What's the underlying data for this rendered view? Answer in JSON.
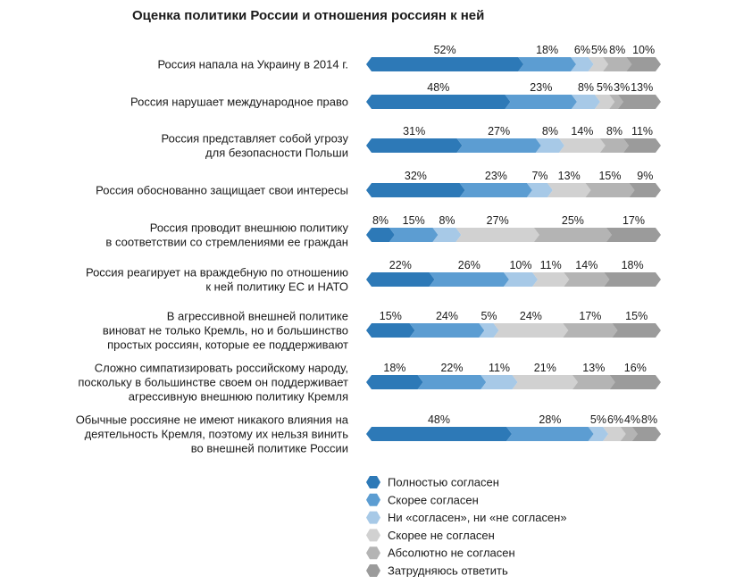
{
  "chart_data": {
    "type": "bar",
    "orientation": "horizontal",
    "stacked": true,
    "title": "Оценка политики России и отношения россиян к ней",
    "value_suffix": "%",
    "xlim": [
      0,
      100
    ],
    "grid": false,
    "legend": "bottom",
    "categories": [
      [
        "Россия напала на Украину в 2014 г."
      ],
      [
        "Россия нарушает международное право"
      ],
      [
        "Россия представляет собой угрозу",
        "для безопасности Польши"
      ],
      [
        "Россия обоснованно защищает свои интересы"
      ],
      [
        "Россия проводит внешнюю политику",
        "в соответствии со стремлениями ее граждан"
      ],
      [
        "Россия реагирует на враждебную по отношению",
        "к ней политику ЕС и НАТО"
      ],
      [
        "В агрессивной внешней политике",
        "виноват не только Кремль, но и большинство",
        "простых россиян, которые ее поддерживают"
      ],
      [
        "Сложно симпатизировать российскому народу,",
        "поскольку в большинстве своем он поддерживает",
        "агрессивную внешнюю политику Кремля"
      ],
      [
        "Обычные россияне не имеют никакого влияния на",
        "деятельность Кремля, поэтому их нельзя винить",
        "во внешней политике России"
      ]
    ],
    "series": [
      {
        "name": "Полностью согласен",
        "color": "#2d79b7",
        "values": [
          52,
          48,
          31,
          32,
          8,
          22,
          15,
          18,
          48
        ]
      },
      {
        "name": "Скорее согласен",
        "color": "#5c9dd2",
        "values": [
          18,
          23,
          27,
          23,
          15,
          26,
          24,
          22,
          28
        ]
      },
      {
        "name": "Ни «согласен», ни «не согласен»",
        "color": "#a7c9e7",
        "values": [
          6,
          8,
          8,
          7,
          8,
          10,
          5,
          11,
          5
        ]
      },
      {
        "name": "Скорее не согласен",
        "color": "#d1d1d1",
        "values": [
          5,
          5,
          14,
          13,
          27,
          11,
          24,
          21,
          6
        ]
      },
      {
        "name": "Абсолютно не согласен",
        "color": "#b4b4b4",
        "values": [
          8,
          3,
          8,
          15,
          25,
          14,
          17,
          13,
          4
        ]
      },
      {
        "name": "Затрудняюсь ответить",
        "color": "#9b9b9b",
        "values": [
          10,
          13,
          11,
          9,
          17,
          18,
          15,
          16,
          8
        ]
      }
    ]
  }
}
